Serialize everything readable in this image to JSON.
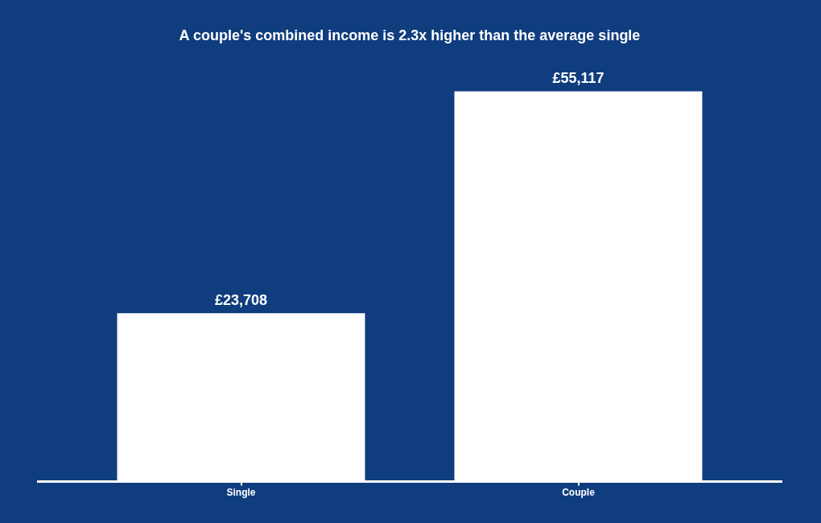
{
  "chart_data": {
    "type": "bar",
    "title": "A couple's combined income is 2.3x higher than the average single",
    "categories": [
      "Single",
      "Couple"
    ],
    "values": [
      23708,
      55117
    ],
    "color": "#ffffff",
    "value_labels": [
      "£23,708",
      "£55,117"
    ],
    "legend": false,
    "tick_labels": "x"
  }
}
